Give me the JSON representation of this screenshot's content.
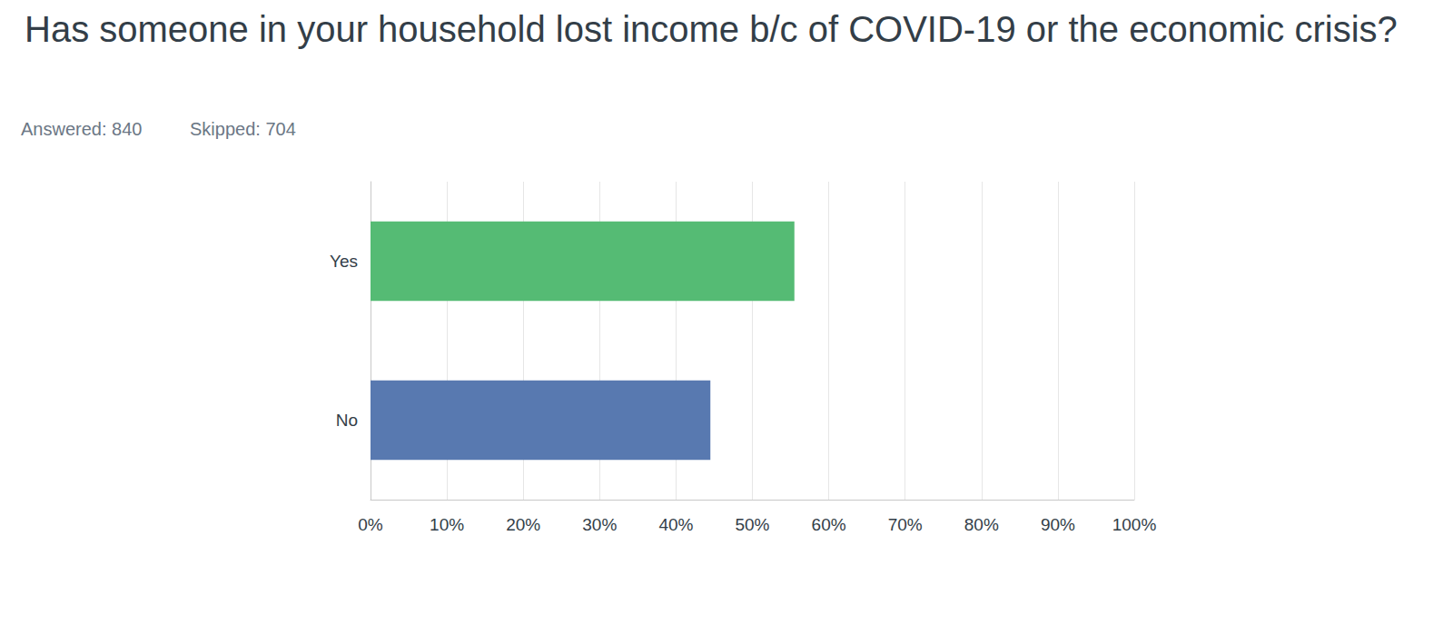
{
  "chart_data": {
    "type": "bar",
    "orientation": "horizontal",
    "title": "Has someone in your household lost income b/c of COVID-19 or the economic crisis?",
    "annotations": [
      "Answered: 840",
      "Skipped: 704"
    ],
    "categories": [
      "Yes",
      "No"
    ],
    "values": [
      55.5,
      44.5
    ],
    "colors": [
      "#55bb74",
      "#5879b0"
    ],
    "xlim": [
      0,
      100
    ],
    "xticks": [
      {
        "value": 0,
        "label": "0%"
      },
      {
        "value": 10,
        "label": "10%"
      },
      {
        "value": 20,
        "label": "20%"
      },
      {
        "value": 30,
        "label": "30%"
      },
      {
        "value": 40,
        "label": "40%"
      },
      {
        "value": 50,
        "label": "50%"
      },
      {
        "value": 60,
        "label": "60%"
      },
      {
        "value": 70,
        "label": "70%"
      },
      {
        "value": 80,
        "label": "80%"
      },
      {
        "value": 90,
        "label": "90%"
      },
      {
        "value": 100,
        "label": "100%"
      }
    ],
    "grid": true
  }
}
